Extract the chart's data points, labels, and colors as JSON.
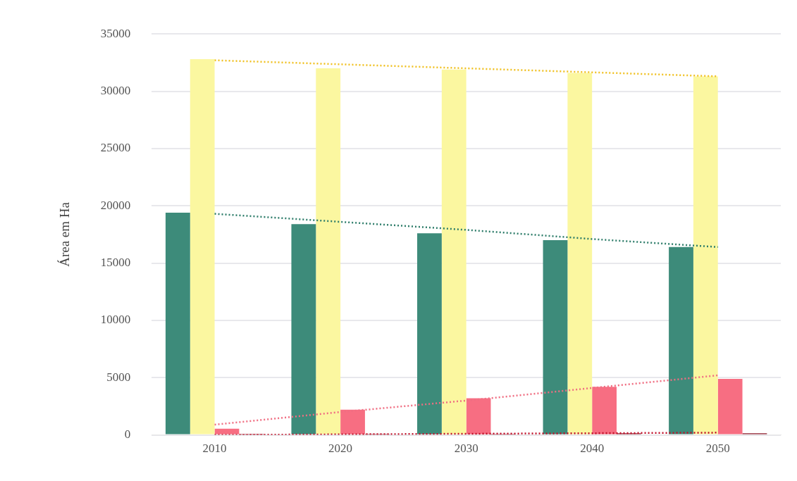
{
  "chart_data": {
    "type": "bar",
    "ylabel": "Área em Ha",
    "categories": [
      "2010",
      "2020",
      "2030",
      "2040",
      "2050"
    ],
    "ylim": [
      0,
      35000
    ],
    "yticks": [
      0,
      5000,
      10000,
      15000,
      20000,
      25000,
      30000,
      35000
    ],
    "grid": "y",
    "legend": false,
    "series": [
      {
        "color": "#3d8b7a",
        "values": [
          19400,
          18400,
          17600,
          17000,
          16400
        ]
      },
      {
        "color": "#fbf7a0",
        "values": [
          32800,
          32000,
          31900,
          31600,
          31300
        ]
      },
      {
        "color": "#f76e82",
        "values": [
          550,
          2200,
          3200,
          4200,
          4900
        ]
      },
      {
        "color": "#8b1a2a",
        "values": [
          100,
          100,
          100,
          150,
          150
        ]
      },
      {
        "type": "line",
        "line_style": "dotted",
        "marker": "none",
        "color": "#f0c020",
        "values": [
          32700,
          32350,
          32000,
          31650,
          31300
        ]
      },
      {
        "type": "line",
        "line_style": "dotted",
        "marker": "none",
        "color": "#2e7d6a",
        "values": [
          19300,
          18600,
          17900,
          17100,
          16400
        ]
      },
      {
        "type": "line",
        "line_style": "dotted",
        "marker": "none",
        "color": "#f06e82",
        "values": [
          900,
          2000,
          3000,
          4100,
          5200
        ]
      },
      {
        "type": "line",
        "line_style": "dotted",
        "marker": "none",
        "color": "#c0102a",
        "values": [
          0,
          50,
          100,
          150,
          200
        ]
      }
    ]
  }
}
